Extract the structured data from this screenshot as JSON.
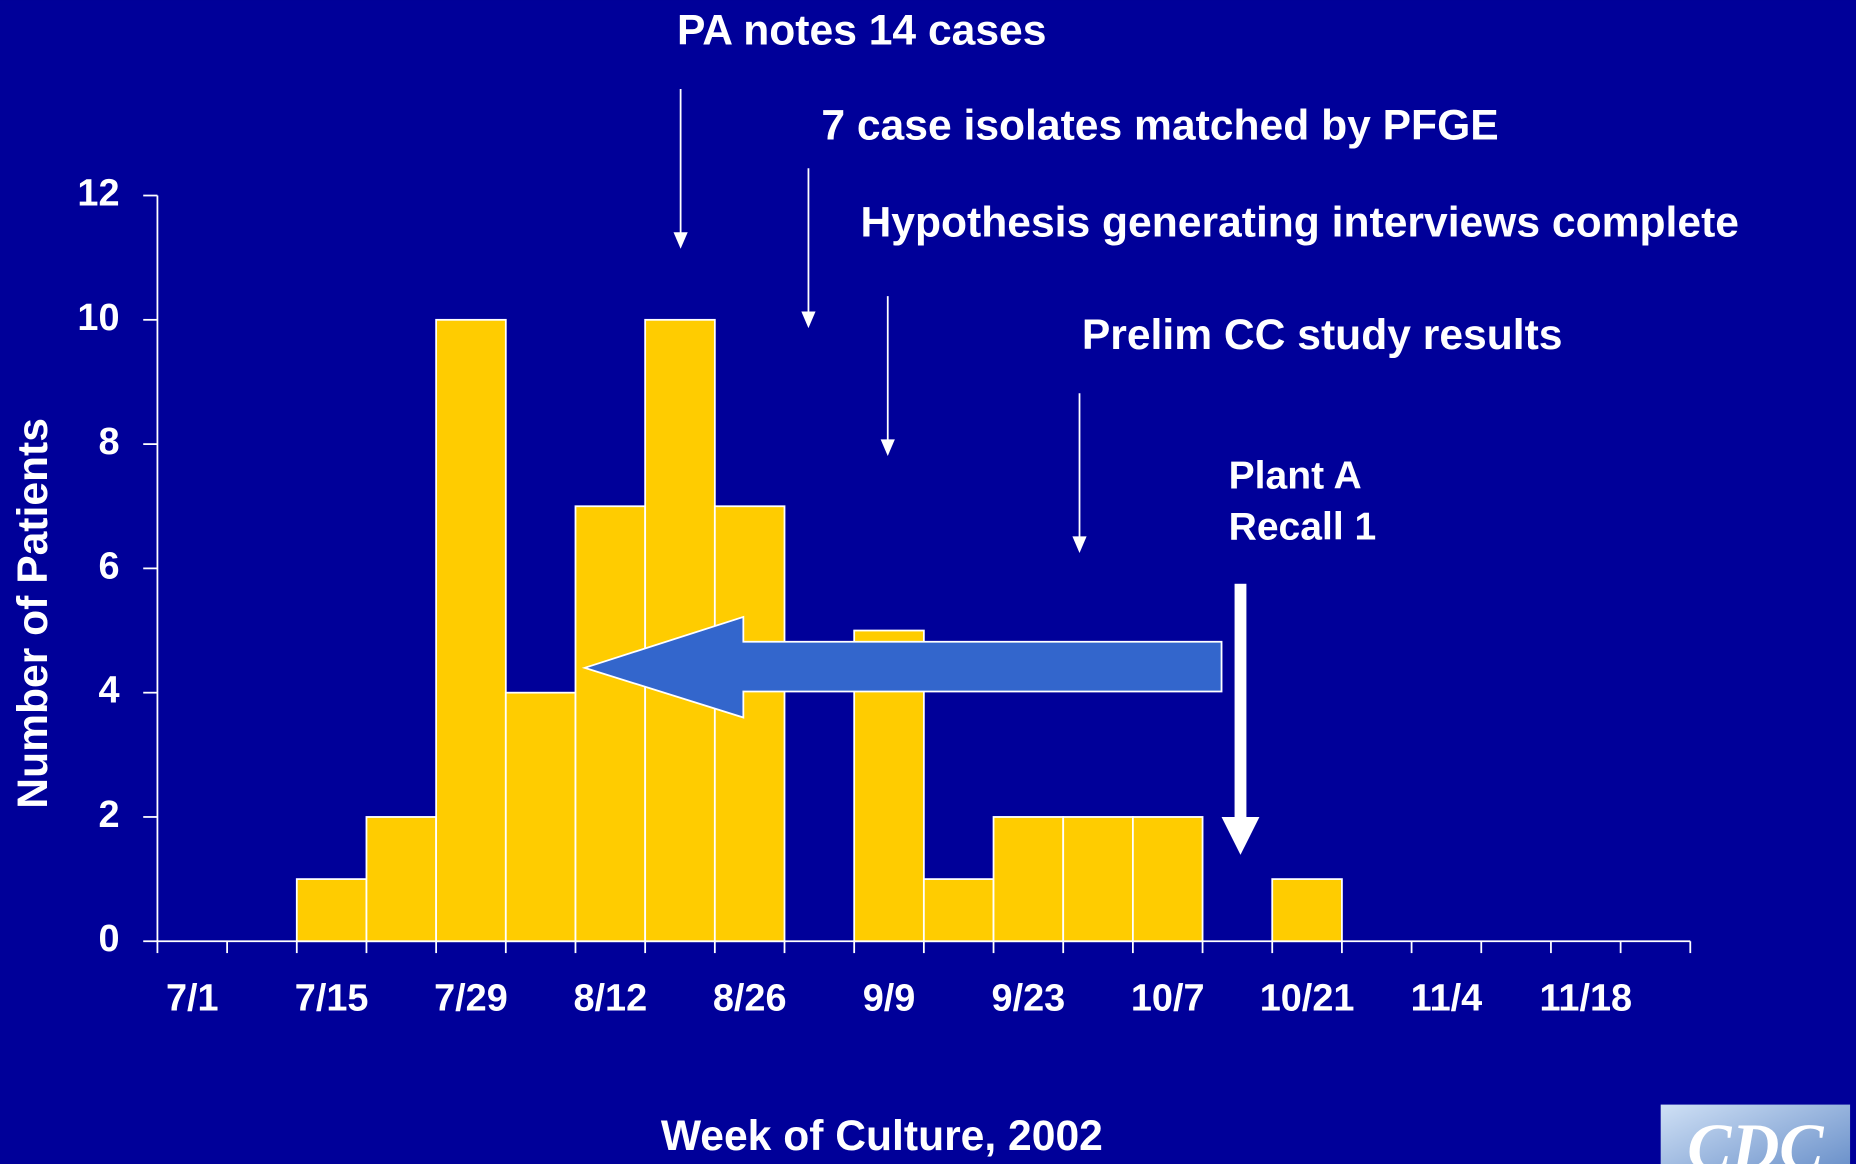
{
  "chart_data": {
    "type": "bar",
    "x_label": "Week of Culture, 2002",
    "y_label": "Number of Patients",
    "categories": [
      "7/1",
      null,
      "7/15",
      null,
      "7/29",
      null,
      "8/12",
      null,
      "8/26",
      null,
      "9/9",
      null,
      "9/23",
      null,
      "10/7",
      null,
      "10/21",
      null,
      "11/4",
      null,
      "11/18",
      null
    ],
    "values": [
      0,
      0,
      1,
      2,
      10,
      4,
      7,
      10,
      7,
      0,
      5,
      1,
      2,
      2,
      2,
      0,
      1,
      0,
      0,
      0,
      0,
      0
    ],
    "color": "#ffcc00",
    "ylim": [
      0,
      12
    ],
    "yticks": [
      0,
      2,
      4,
      6,
      8,
      10,
      12
    ],
    "annotations": [
      "PA notes 14 cases",
      "7 case isolates matched by PFGE",
      "Hypothesis generating interviews complete",
      "Prelim CC study results",
      "Plant A",
      "Recall 1"
    ],
    "logo": "CDC"
  }
}
